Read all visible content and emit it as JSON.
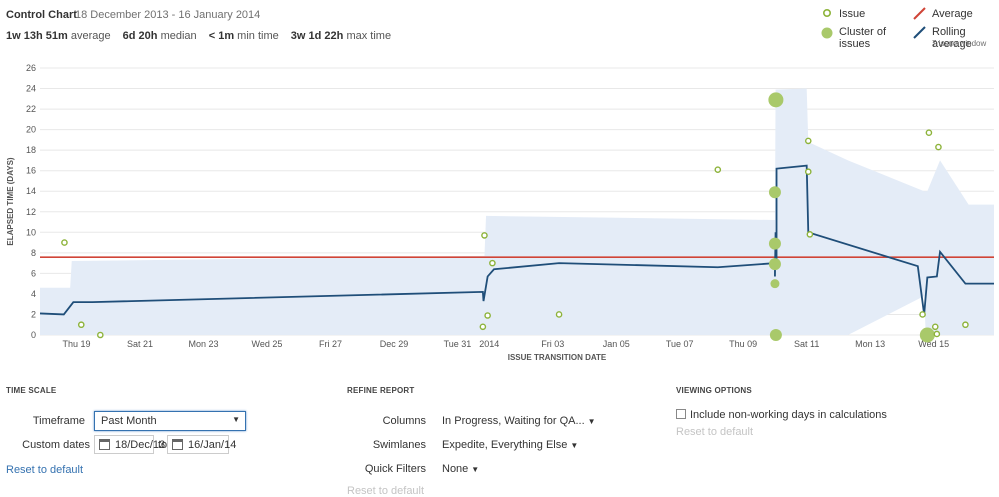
{
  "header": {
    "title": "Control Chart",
    "date_range": "18 December 2013 - 16 January 2014"
  },
  "stats": [
    {
      "value": "1w 13h 51m",
      "label": "average"
    },
    {
      "value": "6d 20h",
      "label": "median"
    },
    {
      "value": "< 1m",
      "label": "min time"
    },
    {
      "value": "3w 1d 22h",
      "label": "max time"
    }
  ],
  "legend": {
    "issue": "Issue",
    "cluster_line1": "Cluster of",
    "cluster_line2": "issues",
    "average": "Average",
    "rolling": "Rolling average",
    "rolling_sub": "7 issue window"
  },
  "colors": {
    "issue": "#8db33a",
    "cluster": "#a9c96a",
    "average": "#d04437",
    "rolling": "#1f4e79",
    "band": "#e4ecf7",
    "grid": "#e8e8e8",
    "link": "#3572b0"
  },
  "chart_data": {
    "type": "scatter",
    "xlabel": "ISSUE TRANSITION DATE",
    "ylabel": "ELAPSED TIME (DAYS)",
    "ylim": [
      0,
      26
    ],
    "y_ticks": [
      0,
      2,
      4,
      6,
      8,
      10,
      12,
      14,
      16,
      18,
      20,
      22,
      24,
      26
    ],
    "xlim": [
      -0.15,
      29.9
    ],
    "x_ticks": [
      {
        "day": 1,
        "label": "Thu 19"
      },
      {
        "day": 3,
        "label": "Sat 21"
      },
      {
        "day": 5,
        "label": "Mon 23"
      },
      {
        "day": 7,
        "label": "Wed 25"
      },
      {
        "day": 9,
        "label": "Fri 27"
      },
      {
        "day": 11,
        "label": "Dec 29"
      },
      {
        "day": 13,
        "label": "Tue 31"
      },
      {
        "day": 14,
        "label": "2014"
      },
      {
        "day": 16,
        "label": "Fri 03"
      },
      {
        "day": 18,
        "label": "Jan 05"
      },
      {
        "day": 20,
        "label": "Tue 07"
      },
      {
        "day": 22,
        "label": "Thu 09"
      },
      {
        "day": 24,
        "label": "Sat 11"
      },
      {
        "day": 26,
        "label": "Mon 13"
      },
      {
        "day": 28,
        "label": "Wed 15"
      }
    ],
    "average": 7.58,
    "issues": [
      {
        "x": 0.62,
        "y": 9.0
      },
      {
        "x": 1.15,
        "y": 1.0
      },
      {
        "x": 1.75,
        "y": 0.0
      },
      {
        "x": 13.8,
        "y": 0.8
      },
      {
        "x": 13.85,
        "y": 9.7
      },
      {
        "x": 13.95,
        "y": 1.9
      },
      {
        "x": 14.1,
        "y": 7.0
      },
      {
        "x": 16.2,
        "y": 2.0
      },
      {
        "x": 21.2,
        "y": 16.1
      },
      {
        "x": 24.05,
        "y": 18.9
      },
      {
        "x": 24.05,
        "y": 15.9
      },
      {
        "x": 24.1,
        "y": 9.8
      },
      {
        "x": 27.65,
        "y": 2.0
      },
      {
        "x": 27.85,
        "y": 19.7
      },
      {
        "x": 28.05,
        "y": 0.8
      },
      {
        "x": 28.1,
        "y": 0.1
      },
      {
        "x": 28.15,
        "y": 18.3
      },
      {
        "x": 29.0,
        "y": 1.0
      }
    ],
    "clusters": [
      {
        "x": 23.03,
        "y": 22.9,
        "size": "large"
      },
      {
        "x": 23.0,
        "y": 13.9,
        "size": "medium"
      },
      {
        "x": 23.0,
        "y": 8.9,
        "size": "medium"
      },
      {
        "x": 23.0,
        "y": 6.9,
        "size": "medium"
      },
      {
        "x": 23.0,
        "y": 5.0,
        "size": "small"
      },
      {
        "x": 23.03,
        "y": 0.0,
        "size": "medium"
      },
      {
        "x": 27.8,
        "y": 0.0,
        "size": "large"
      }
    ],
    "rolling_average": [
      [
        -0.15,
        2.1
      ],
      [
        0.6,
        2.0
      ],
      [
        0.9,
        3.2
      ],
      [
        1.5,
        3.2
      ],
      [
        13.8,
        4.2
      ],
      [
        13.82,
        3.3
      ],
      [
        13.95,
        5.7
      ],
      [
        14.15,
        6.4
      ],
      [
        16.2,
        7.0
      ],
      [
        21.2,
        6.6
      ],
      [
        23.0,
        7.0
      ],
      [
        23.0,
        5.7
      ],
      [
        23.02,
        10.0
      ],
      [
        23.05,
        6.8
      ],
      [
        23.05,
        16.2
      ],
      [
        24.0,
        16.5
      ],
      [
        24.05,
        10.0
      ],
      [
        27.5,
        6.7
      ],
      [
        27.7,
        2.0
      ],
      [
        27.8,
        5.6
      ],
      [
        28.1,
        5.7
      ],
      [
        28.2,
        8.1
      ],
      [
        29.0,
        5.0
      ],
      [
        29.9,
        5.0
      ]
    ],
    "rolling_band": [
      [
        -0.15,
        4.6,
        0.0
      ],
      [
        0.8,
        4.6,
        0.0
      ],
      [
        0.85,
        7.2,
        0.0
      ],
      [
        13.85,
        7.7,
        0.0
      ],
      [
        13.9,
        11.6,
        0.0
      ],
      [
        23.0,
        11.2,
        0.0
      ],
      [
        23.02,
        23.9,
        0.0
      ],
      [
        24.0,
        24.0,
        0.0
      ],
      [
        24.05,
        18.8,
        0.0
      ],
      [
        25.3,
        17.0,
        0.0
      ],
      [
        27.7,
        14.0,
        3.8
      ],
      [
        27.75,
        14.0,
        0.0
      ],
      [
        27.8,
        14.0,
        0.0
      ],
      [
        28.2,
        17.0,
        0.0
      ],
      [
        29.1,
        12.7,
        0.0
      ],
      [
        29.9,
        12.7,
        0.0
      ]
    ]
  },
  "time_scale": {
    "heading": "TIME SCALE",
    "timeframe_label": "Timeframe",
    "timeframe_value": "Past Month",
    "custom_dates_label": "Custom dates",
    "date_from": "18/Dec/13",
    "date_to_word": "to",
    "date_to": "16/Jan/14",
    "reset": "Reset to default"
  },
  "refine": {
    "heading": "REFINE REPORT",
    "columns_label": "Columns",
    "columns_value": "In Progress, Waiting for QA...",
    "swimlanes_label": "Swimlanes",
    "swimlanes_value": "Expedite, Everything Else",
    "quickfilters_label": "Quick Filters",
    "quickfilters_value": "None",
    "reset": "Reset to default"
  },
  "viewing": {
    "heading": "VIEWING OPTIONS",
    "nonworking_label": "Include non-working days in calculations",
    "nonworking_checked": false,
    "reset": "Reset to default"
  }
}
